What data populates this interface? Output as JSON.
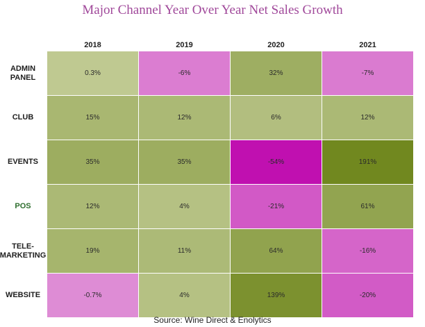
{
  "chart_data": {
    "type": "heatmap",
    "title": "Major Channel Year Over Year Net Sales Growth",
    "columns": [
      "2018",
      "2019",
      "2020",
      "2021"
    ],
    "rows": [
      {
        "label": "ADMIN\nPANEL",
        "labels": [
          "0.3%",
          "-6%",
          "32%",
          "-7%"
        ],
        "values": [
          0.3,
          -6,
          32,
          -7
        ]
      },
      {
        "label": "CLUB",
        "labels": [
          "15%",
          "12%",
          "6%",
          "12%"
        ],
        "values": [
          15,
          12,
          6,
          12
        ]
      },
      {
        "label": "EVENTS",
        "labels": [
          "35%",
          "35%",
          "-54%",
          "191%"
        ],
        "values": [
          35,
          35,
          -54,
          191
        ]
      },
      {
        "label": "POS",
        "labels": [
          "12%",
          "4%",
          "-21%",
          "61%"
        ],
        "values": [
          12,
          4,
          -21,
          61
        ]
      },
      {
        "label": "TELE-\nMARKETING",
        "labels": [
          "19%",
          "11%",
          "64%",
          "-16%"
        ],
        "values": [
          19,
          11,
          64,
          -16
        ]
      },
      {
        "label": "WEBSITE",
        "labels": [
          "-0.7%",
          "4%",
          "139%",
          "-20%"
        ],
        "values": [
          -0.7,
          4,
          139,
          -20
        ]
      }
    ],
    "source": "Source: Wine Direct & Enolytics"
  },
  "colors": {
    "title": "#a0489a",
    "positive_low": "#c3cd98",
    "positive_high": "#71881f",
    "negative_low": "#df8fd6",
    "negative_high": "#c010b0",
    "pos_label": "#2e6e2e"
  }
}
